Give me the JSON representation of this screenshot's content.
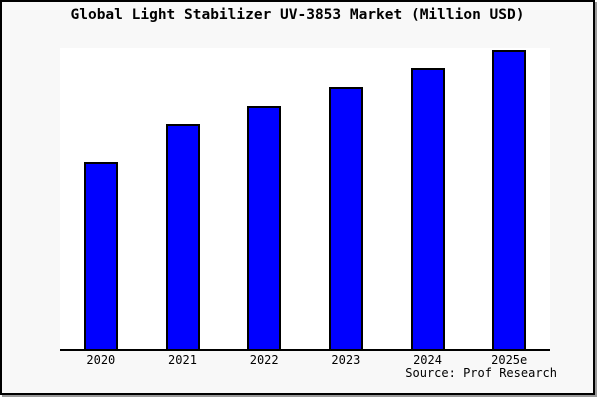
{
  "chart_data": {
    "type": "bar",
    "title": "Global Light Stabilizer UV-3853 Market (Million USD)",
    "categories": [
      "2020",
      "2021",
      "2022",
      "2023",
      "2024",
      "2025e"
    ],
    "values": [
      62.1,
      74.8,
      80.9,
      87.0,
      93.5,
      99.3
    ],
    "value_unit": "relative bar height as % of plot-area height (chart shows no y-axis, gridlines, or data labels)",
    "xlabel": "",
    "ylabel": "",
    "ylim": [
      0,
      100
    ],
    "grid": false,
    "legend": null,
    "source_label": "Source: Prof Research"
  },
  "colors": {
    "bar_fill": "#0000ff",
    "bar_edge": "#000000",
    "canvas_background": "#f8f8f8",
    "plot_background": "#ffffff",
    "axis_line": "#000000",
    "frame_border": "#000000",
    "frame_shadow": "#999999",
    "text": "#000000"
  }
}
